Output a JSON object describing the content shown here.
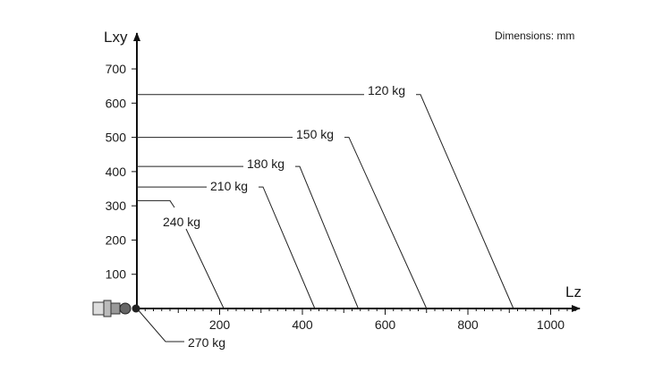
{
  "chart_data": {
    "type": "line",
    "title": "",
    "note": "Dimensions: mm",
    "xlabel": "Lz",
    "ylabel": "Lxy",
    "xlim": [
      0,
      1100
    ],
    "ylim": [
      0,
      760
    ],
    "x_ticks": [
      200,
      400,
      600,
      800,
      1000
    ],
    "y_ticks": [
      100,
      200,
      300,
      400,
      500,
      600,
      700
    ],
    "grid": false,
    "series": [
      {
        "name": "120 kg",
        "lxy": 625,
        "lz": 910
      },
      {
        "name": "150 kg",
        "lxy": 500,
        "lz": 700
      },
      {
        "name": "180 kg",
        "lxy": 415,
        "lz": 535
      },
      {
        "name": "210 kg",
        "lxy": 355,
        "lz": 430
      },
      {
        "name": "240 kg",
        "lxy": 315,
        "lz": 210
      },
      {
        "name": "270 kg",
        "lxy": 0,
        "lz": 0
      }
    ]
  }
}
